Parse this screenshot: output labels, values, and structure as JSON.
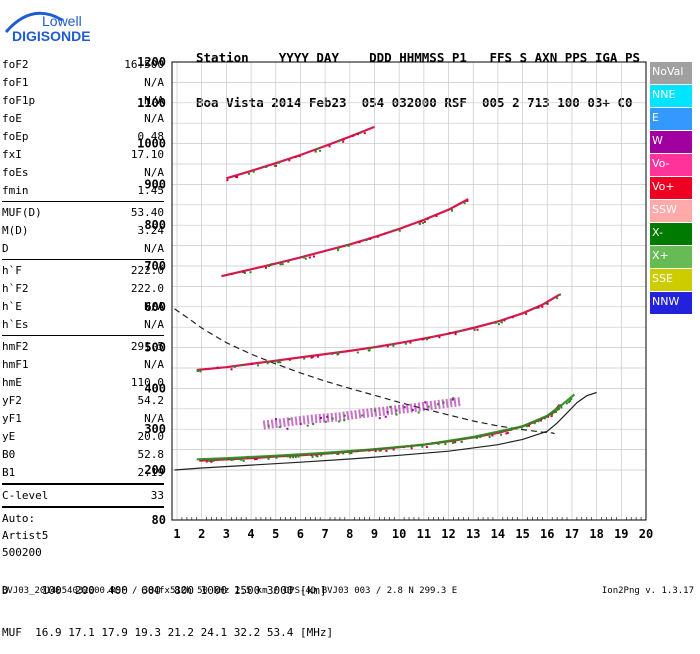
{
  "logo": {
    "line1": "Lowell",
    "line2": "DIGISONDE"
  },
  "header": {
    "labels": "Station    YYYY DAY    DDD HHMMSS P1   FFS S AXN PPS IGA PS",
    "values": "Boa Vista 2014 Feb23  054 032000 RSF  005 2 713 100 03+ C0"
  },
  "params": {
    "group1": [
      {
        "name": "foF2",
        "value": "16.500"
      },
      {
        "name": "foF1",
        "value": "N/A"
      },
      {
        "name": "foF1p",
        "value": "N/A"
      },
      {
        "name": "foE",
        "value": "N/A"
      },
      {
        "name": "foEp",
        "value": "0.48"
      },
      {
        "name": "fxI",
        "value": "17.10"
      },
      {
        "name": "foEs",
        "value": "N/A"
      },
      {
        "name": "fmin",
        "value": "1.45"
      }
    ],
    "group2": [
      {
        "name": "MUF(D)",
        "value": "53.40"
      },
      {
        "name": "M(D)",
        "value": "3.24"
      },
      {
        "name": "D",
        "value": "N/A"
      }
    ],
    "group3": [
      {
        "name": "h`F",
        "value": "222.0"
      },
      {
        "name": "h`F2",
        "value": "222.0"
      },
      {
        "name": "h`E",
        "value": "N/A"
      },
      {
        "name": "h`Es",
        "value": "N/A"
      }
    ],
    "group4": [
      {
        "name": "hmF2",
        "value": "291.5"
      },
      {
        "name": "hmF1",
        "value": "N/A"
      },
      {
        "name": "hmE",
        "value": "110.0"
      },
      {
        "name": "yF2",
        "value": "54.2"
      },
      {
        "name": "yF1",
        "value": "N/A"
      },
      {
        "name": "yE",
        "value": "20.0"
      },
      {
        "name": "B0",
        "value": "52.8"
      },
      {
        "name": "B1",
        "value": "2.19"
      }
    ],
    "clevel": {
      "name": "C-level",
      "value": "33"
    },
    "auto": [
      "Auto:",
      "Artist5",
      "500200"
    ]
  },
  "legend": [
    {
      "label": "NoVal",
      "color": "#a0a0a0"
    },
    {
      "label": "NNE",
      "color": "#00e5ff"
    },
    {
      "label": "E",
      "color": "#3399ff"
    },
    {
      "label": "W",
      "color": "#a000a0"
    },
    {
      "label": "Vo-",
      "color": "#ff3399"
    },
    {
      "label": "Vo+",
      "color": "#ee0022"
    },
    {
      "label": "SSW",
      "color": "#ffaaaa"
    },
    {
      "label": "X-",
      "color": "#007a00"
    },
    {
      "label": "X+",
      "color": "#66bb55"
    },
    {
      "label": "SSE",
      "color": "#cccc00"
    },
    {
      "label": "NNW",
      "color": "#2222dd"
    }
  ],
  "chart_data": {
    "type": "scatter",
    "x_ticks": [
      "1",
      "2",
      "3",
      "4",
      "5",
      "6",
      "7",
      "8",
      "9",
      "10",
      "11",
      "12",
      "13",
      "14",
      "15",
      "16",
      "17",
      "18",
      "19",
      "20"
    ],
    "y_ticks": [
      "80",
      "200",
      "300",
      "400",
      "500",
      "600",
      "700",
      "800",
      "900",
      "1000",
      "1100",
      "1200"
    ],
    "xlim": [
      0.9,
      20.1
    ],
    "ylim": [
      200,
      1200
    ],
    "y_bottom_label": "80",
    "grid": true,
    "traces": [
      {
        "name": "O-trace 1st hop",
        "color": "#d0003a",
        "x": [
          1.9,
          3,
          4,
          5,
          6,
          7,
          8,
          9,
          10,
          11,
          12,
          13,
          14,
          15,
          15.5,
          16,
          16.3,
          16.5
        ],
        "y": [
          223,
          226,
          229,
          233,
          236,
          240,
          245,
          250,
          256,
          262,
          270,
          280,
          291,
          307,
          318,
          332,
          345,
          360
        ]
      },
      {
        "name": "X-trace 1st hop",
        "color": "#2a8a20",
        "x": [
          1.8,
          3,
          5,
          7,
          9,
          11,
          13,
          15,
          16,
          16.6,
          17.1
        ],
        "y": [
          226,
          229,
          235,
          242,
          251,
          262,
          281,
          307,
          333,
          360,
          385
        ]
      },
      {
        "name": "O-trace 2nd hop",
        "color": "#d0003a",
        "x": [
          1.8,
          3,
          4,
          5,
          6,
          7,
          8,
          9,
          10,
          11,
          12,
          13,
          14,
          15,
          15.8,
          16.5
        ],
        "y": [
          445,
          452,
          460,
          468,
          476,
          484,
          492,
          501,
          511,
          522,
          534,
          548,
          564,
          584,
          605,
          630
        ]
      },
      {
        "name": "O-trace 3rd hop",
        "color": "#d0003a",
        "x": [
          2.8,
          4,
          5,
          6,
          7,
          8,
          9,
          10,
          11,
          12,
          12.8
        ],
        "y": [
          675,
          692,
          706,
          721,
          737,
          753,
          771,
          791,
          813,
          838,
          864
        ]
      },
      {
        "name": "O-trace 4th hop",
        "color": "#d0003a",
        "x": [
          3,
          4,
          5,
          6,
          7,
          8,
          9
        ],
        "y": [
          915,
          933,
          952,
          972,
          994,
          1017,
          1041
        ]
      },
      {
        "name": "Spread F",
        "color": "#a000a0",
        "x": [
          4.5,
          5.5,
          6.5,
          7.5,
          8.5,
          9.5,
          10.5,
          11.5,
          12.5
        ],
        "y": [
          310,
          318,
          325,
          330,
          338,
          345,
          352,
          360,
          368
        ]
      }
    ],
    "profiles": [
      {
        "name": "profile-dashed",
        "style": "dashed",
        "x": [
          0.9,
          1.5,
          2,
          2.5,
          3,
          4,
          5,
          6,
          7,
          8,
          9,
          10,
          11,
          12,
          13,
          14,
          15,
          15.8,
          16.2,
          16.3
        ],
        "y": [
          595,
          570,
          548,
          530,
          512,
          484,
          460,
          438,
          418,
          400,
          383,
          366,
          350,
          335,
          320,
          308,
          299,
          293,
          291,
          289
        ]
      },
      {
        "name": "profile-solid",
        "style": "solid",
        "x": [
          0.9,
          2,
          4,
          6,
          8,
          10,
          12,
          14,
          15,
          16,
          16.4,
          16.8,
          17.2,
          17.6,
          18
        ],
        "y": [
          200,
          205,
          212,
          219,
          227,
          236,
          246,
          262,
          275,
          295,
          315,
          340,
          365,
          382,
          390
        ]
      }
    ]
  },
  "bottom": {
    "d_row": "D     100  200  400  600  800 1000 1500 3000 [km]",
    "muf_row": "MUF  16.9 17.1 17.9 19.3 21.2 24.1 32.2 53.4 [MHz]"
  },
  "footer": {
    "file": "BVJ03_2014054032000.RSF / 384fx512h 50 kHz 2.5 km / DPS-4D BVJ03 003 / 2.8 N 299.3 E",
    "version": "Ion2Png v. 1.3.17"
  }
}
